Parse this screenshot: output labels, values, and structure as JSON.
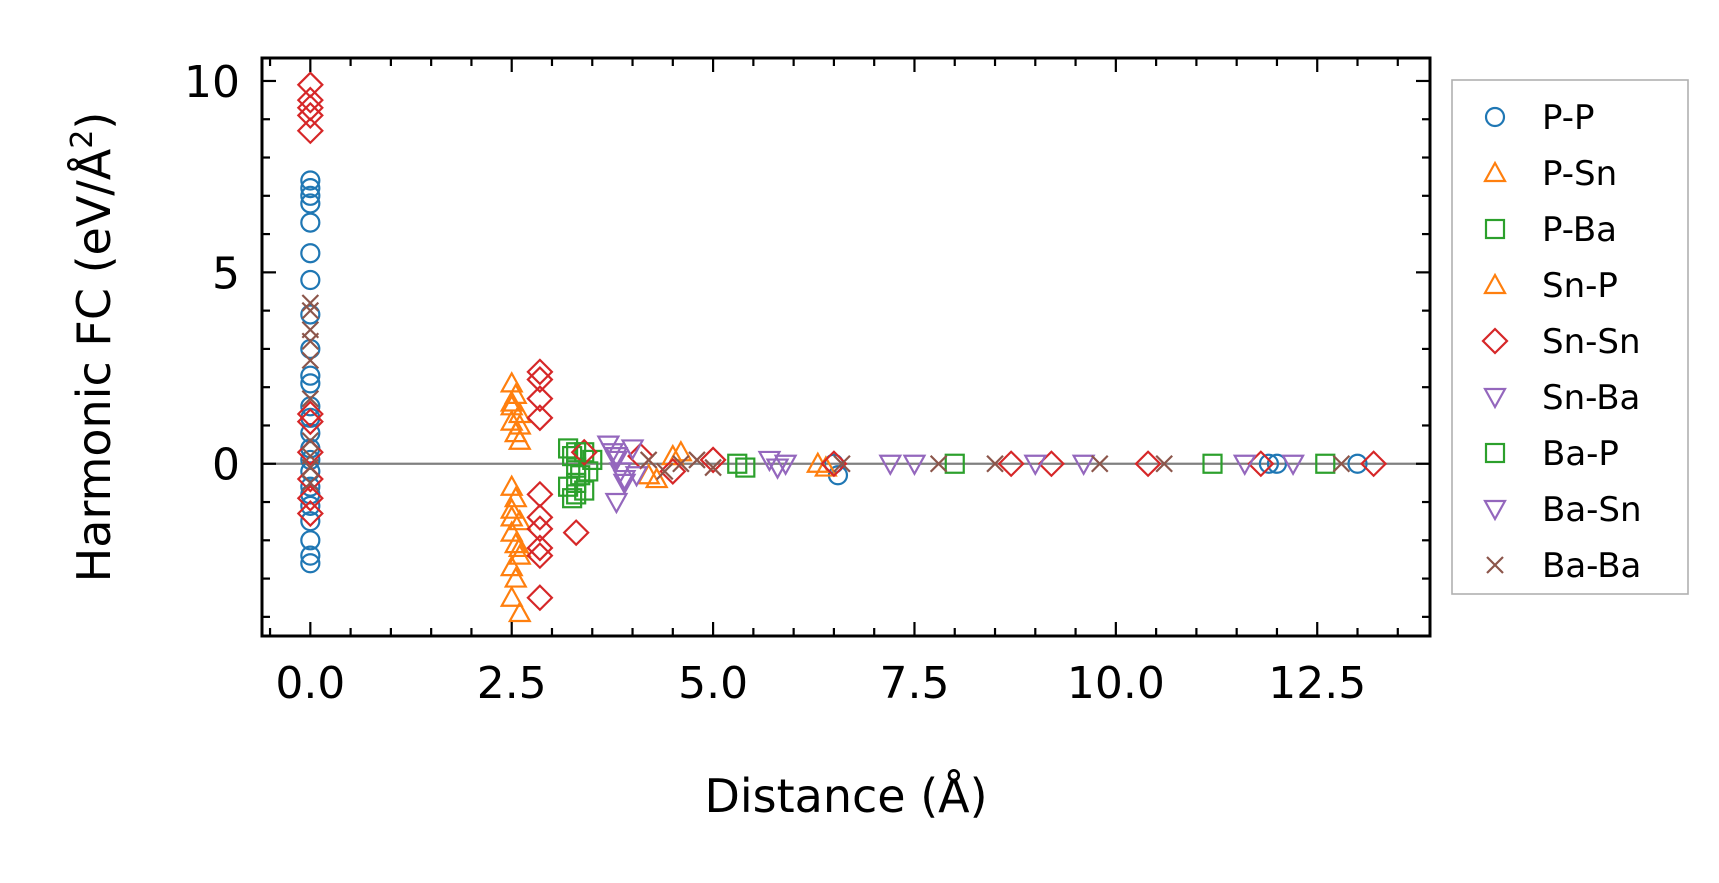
{
  "chart_data": {
    "type": "scatter",
    "title": "",
    "xlabel": "Distance (Å)",
    "ylabel": "Harmonic FC (eV/Å²)",
    "ylabel_main": "Harmonic FC (eV/Å",
    "ylabel_sup": "2",
    "ylabel_end": ")",
    "xlim": [
      -0.6,
      13.9
    ],
    "ylim": [
      -4.5,
      10.6
    ],
    "xticks": [
      0.0,
      2.5,
      5.0,
      7.5,
      10.0,
      12.5
    ],
    "xtick_labels": [
      "0.0",
      "2.5",
      "5.0",
      "7.5",
      "10.0",
      "12.5"
    ],
    "yticks": [
      0,
      5,
      10
    ],
    "ytick_labels": [
      "0",
      "5",
      "10"
    ],
    "zero_line": true,
    "grid": false,
    "legend_position": "outside-right",
    "series": [
      {
        "name": "P-P",
        "marker": "circle",
        "color": "#1f77b4",
        "points": [
          [
            0,
            7.4
          ],
          [
            0,
            7.2
          ],
          [
            0,
            7.0
          ],
          [
            0,
            6.8
          ],
          [
            0,
            6.3
          ],
          [
            0,
            5.5
          ],
          [
            0,
            4.8
          ],
          [
            0,
            3.9
          ],
          [
            0,
            3.0
          ],
          [
            0,
            2.3
          ],
          [
            0,
            2.1
          ],
          [
            0,
            1.5
          ],
          [
            0,
            1.2
          ],
          [
            0,
            0.8
          ],
          [
            0,
            0.4
          ],
          [
            0,
            0.1
          ],
          [
            0,
            -0.2
          ],
          [
            0,
            -0.6
          ],
          [
            0,
            -0.8
          ],
          [
            0,
            -1.1
          ],
          [
            0,
            -1.5
          ],
          [
            0,
            -2.0
          ],
          [
            0,
            -2.4
          ],
          [
            0,
            -2.6
          ],
          [
            6.5,
            0.0
          ],
          [
            6.55,
            -0.3
          ],
          [
            11.9,
            0.0
          ],
          [
            12.0,
            0.0
          ],
          [
            13.0,
            0.0
          ]
        ]
      },
      {
        "name": "P-Sn",
        "marker": "triangle-up",
        "color": "#ff7f0e",
        "points": [
          [
            2.5,
            2.1
          ],
          [
            2.55,
            1.8
          ],
          [
            2.5,
            1.5
          ],
          [
            2.6,
            1.3
          ],
          [
            2.5,
            1.1
          ],
          [
            2.55,
            0.8
          ],
          [
            2.6,
            0.6
          ],
          [
            2.5,
            -0.6
          ],
          [
            2.55,
            -0.9
          ],
          [
            2.5,
            -1.2
          ],
          [
            2.6,
            -1.5
          ],
          [
            2.5,
            -1.8
          ],
          [
            2.55,
            -2.1
          ],
          [
            2.6,
            -2.4
          ],
          [
            2.5,
            -2.7
          ],
          [
            2.55,
            -3.0
          ],
          [
            2.5,
            -3.5
          ],
          [
            2.6,
            -3.9
          ],
          [
            4.3,
            -0.4
          ],
          [
            4.6,
            0.3
          ]
        ]
      },
      {
        "name": "P-Ba",
        "marker": "square",
        "color": "#2ca02c",
        "points": [
          [
            3.2,
            0.4
          ],
          [
            3.25,
            0.2
          ],
          [
            3.3,
            -0.1
          ],
          [
            3.35,
            -0.3
          ],
          [
            3.2,
            -0.6
          ],
          [
            3.3,
            -0.8
          ],
          [
            3.4,
            0.3
          ],
          [
            3.45,
            -0.2
          ],
          [
            3.5,
            0.1
          ],
          [
            3.25,
            -0.9
          ],
          [
            5.3,
            0.0
          ],
          [
            5.4,
            -0.1
          ]
        ]
      },
      {
        "name": "Sn-P",
        "marker": "triangle-up",
        "color": "#ff7f0e",
        "points": [
          [
            2.5,
            1.6
          ],
          [
            2.6,
            1.0
          ],
          [
            2.5,
            -1.4
          ],
          [
            2.6,
            -2.2
          ],
          [
            4.2,
            -0.3
          ],
          [
            4.5,
            0.2
          ],
          [
            6.3,
            0.0
          ],
          [
            6.4,
            -0.1
          ]
        ]
      },
      {
        "name": "Sn-Sn",
        "marker": "diamond",
        "color": "#d62728",
        "points": [
          [
            0,
            9.9
          ],
          [
            0,
            9.5
          ],
          [
            0,
            9.3
          ],
          [
            0,
            9.1
          ],
          [
            0,
            8.7
          ],
          [
            0,
            1.3
          ],
          [
            0,
            1.1
          ],
          [
            0,
            0.3
          ],
          [
            0,
            -0.4
          ],
          [
            0,
            -0.9
          ],
          [
            0,
            -1.3
          ],
          [
            2.85,
            2.4
          ],
          [
            2.85,
            2.2
          ],
          [
            2.85,
            1.7
          ],
          [
            2.85,
            1.2
          ],
          [
            2.85,
            -0.8
          ],
          [
            2.85,
            -1.4
          ],
          [
            2.85,
            -1.7
          ],
          [
            2.85,
            -2.2
          ],
          [
            2.85,
            -2.4
          ],
          [
            2.85,
            -3.5
          ],
          [
            3.3,
            -1.8
          ],
          [
            3.4,
            0.3
          ],
          [
            4.1,
            0.2
          ],
          [
            4.5,
            -0.2
          ],
          [
            5.0,
            0.1
          ],
          [
            6.5,
            0.0
          ],
          [
            8.7,
            0.0
          ],
          [
            9.2,
            0.0
          ],
          [
            10.4,
            0.0
          ],
          [
            11.8,
            0.0
          ],
          [
            13.2,
            0.0
          ]
        ]
      },
      {
        "name": "Sn-Ba",
        "marker": "triangle-down",
        "color": "#9467bd",
        "points": [
          [
            3.7,
            0.5
          ],
          [
            3.75,
            0.3
          ],
          [
            3.8,
            0.1
          ],
          [
            3.85,
            -0.2
          ],
          [
            3.9,
            -0.5
          ],
          [
            3.8,
            -1.0
          ],
          [
            4.0,
            0.4
          ],
          [
            4.05,
            -0.3
          ],
          [
            5.7,
            0.1
          ],
          [
            5.8,
            -0.1
          ],
          [
            7.2,
            0.0
          ],
          [
            9.0,
            0.0
          ],
          [
            11.6,
            0.0
          ]
        ]
      },
      {
        "name": "Ba-P",
        "marker": "square",
        "color": "#2ca02c",
        "points": [
          [
            3.3,
            0.3
          ],
          [
            3.3,
            -0.5
          ],
          [
            3.4,
            -0.7
          ],
          [
            8.0,
            0.0
          ],
          [
            11.2,
            0.0
          ],
          [
            12.6,
            0.0
          ]
        ]
      },
      {
        "name": "Ba-Sn",
        "marker": "triangle-down",
        "color": "#9467bd",
        "points": [
          [
            3.8,
            0.2
          ],
          [
            3.9,
            -0.4
          ],
          [
            5.9,
            0.0
          ],
          [
            7.5,
            0.0
          ],
          [
            9.6,
            0.0
          ],
          [
            12.2,
            0.0
          ]
        ]
      },
      {
        "name": "Ba-Ba",
        "marker": "x",
        "color": "#8c564b",
        "points": [
          [
            0,
            4.2
          ],
          [
            0,
            4.0
          ],
          [
            0,
            3.5
          ],
          [
            0,
            3.2
          ],
          [
            0,
            2.7
          ],
          [
            0,
            1.7
          ],
          [
            0,
            0.6
          ],
          [
            0,
            0.2
          ],
          [
            0,
            -0.1
          ],
          [
            0,
            -0.5
          ],
          [
            4.2,
            0.1
          ],
          [
            4.4,
            -0.2
          ],
          [
            4.6,
            0.0
          ],
          [
            4.8,
            0.1
          ],
          [
            5.0,
            -0.1
          ],
          [
            6.6,
            0.0
          ],
          [
            7.8,
            0.0
          ],
          [
            8.5,
            0.0
          ],
          [
            9.8,
            0.0
          ],
          [
            10.6,
            0.0
          ],
          [
            12.8,
            0.0
          ]
        ]
      }
    ]
  }
}
